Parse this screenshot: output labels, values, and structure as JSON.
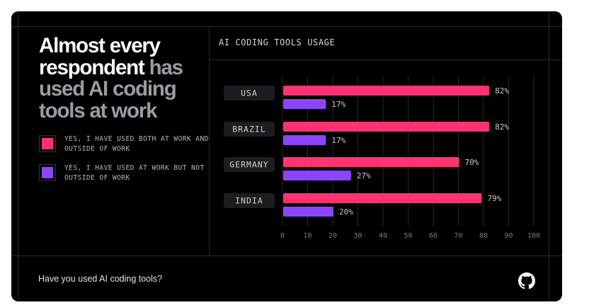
{
  "headline": {
    "bright": "Almost every respondent",
    "dim": "has used AI coding tools at work"
  },
  "legend": [
    {
      "label": "YES, I HAVE USED BOTH AT WORK AND OUTSIDE OF WORK",
      "color": "#ff3370"
    },
    {
      "label": "YES, I HAVE USED AT WORK BUT NOT OUTSIDE OF WORK",
      "color": "#8c45ff"
    }
  ],
  "chart_title": "AI CODING TOOLS USAGE",
  "footer": {
    "question": "Have you used AI coding tools?",
    "logo_icon": "github-icon"
  },
  "colors": {
    "background": "#000000",
    "pink": "#ff3370",
    "purple": "#8c45ff",
    "grid": "#2a2a2a",
    "category_chip": "#1c1d20"
  },
  "chart_data": {
    "type": "bar",
    "orientation": "horizontal",
    "title": "AI CODING TOOLS USAGE",
    "categories": [
      "USA",
      "BRAZIL",
      "GERMANY",
      "INDIA"
    ],
    "series": [
      {
        "name": "YES, I HAVE USED BOTH AT WORK AND OUTSIDE OF WORK",
        "color": "#ff3370",
        "values": [
          82,
          82,
          70,
          79
        ],
        "labels": [
          "82%",
          "82%",
          "70%",
          "79%"
        ]
      },
      {
        "name": "YES, I HAVE USED AT WORK BUT NOT OUTSIDE OF WORK",
        "color": "#8c45ff",
        "values": [
          17,
          17,
          27,
          20
        ],
        "labels": [
          "17%",
          "17%",
          "27%",
          "20%"
        ]
      }
    ],
    "xlim": [
      0,
      100
    ],
    "xticks": [
      "0",
      "10",
      "20",
      "30",
      "40",
      "50",
      "60",
      "70",
      "80",
      "90",
      "100"
    ],
    "xlabel": "",
    "ylabel": "",
    "grid": true,
    "legend": "left"
  }
}
